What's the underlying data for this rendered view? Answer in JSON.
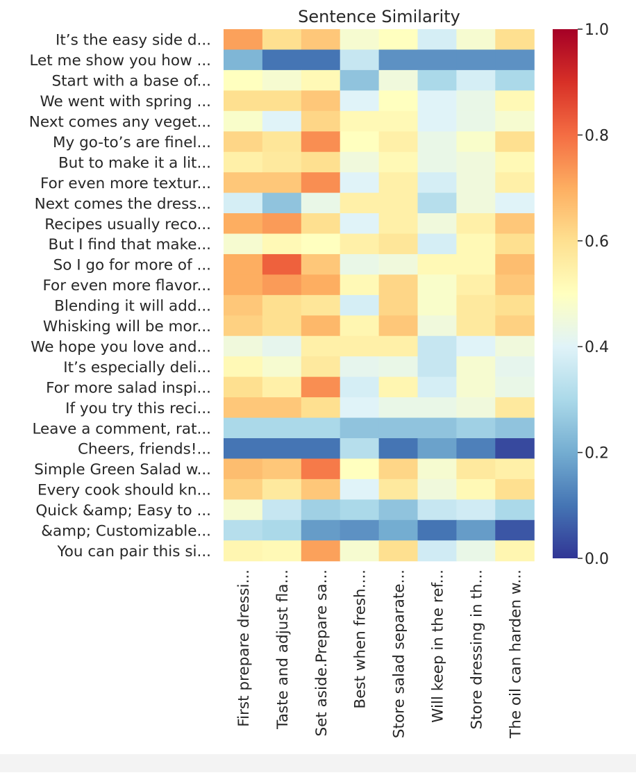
{
  "chart_data": {
    "type": "heatmap",
    "title": "Sentence Similarity",
    "xlabel": "",
    "ylabel": "",
    "rows": [
      "It’s the easy side d...",
      "Let me show you how ...",
      "Start with a base of...",
      "We went with spring ...",
      "Next comes any veget...",
      "My go-to’s are finel...",
      "But to make it a lit...",
      "For even more textur...",
      "Next comes the dress...",
      "Recipes usually reco...",
      "But I find that make...",
      "So I go for more of ...",
      "For even more flavor...",
      "Blending it will add...",
      "Whisking will be mor...",
      "We hope you love and...",
      "It’s especially deli...",
      "For more salad inspi...",
      "If you try this reci...",
      "Leave a comment, rat...",
      "Cheers, friends!...",
      "Simple Green Salad w...",
      "Every cook should kn...",
      "Quick &amp; Easy to ...",
      "&amp; Customizable...",
      "You can pair this si..."
    ],
    "columns": [
      "First prepare dressi...",
      "Taste and adjust fla...",
      "Set aside.Prepare sa...",
      "Best when fresh....",
      "Store salad separate...",
      "Will keep in the ref...",
      "Store dressing in th...",
      "The oil can harden w..."
    ],
    "values": [
      [
        0.72,
        0.6,
        0.65,
        0.47,
        0.5,
        0.38,
        0.47,
        0.6
      ],
      [
        0.22,
        0.1,
        0.1,
        0.35,
        0.15,
        0.15,
        0.15,
        0.15
      ],
      [
        0.5,
        0.47,
        0.52,
        0.25,
        0.45,
        0.3,
        0.38,
        0.3
      ],
      [
        0.6,
        0.6,
        0.65,
        0.4,
        0.5,
        0.4,
        0.43,
        0.52
      ],
      [
        0.48,
        0.4,
        0.62,
        0.52,
        0.52,
        0.4,
        0.43,
        0.47
      ],
      [
        0.62,
        0.58,
        0.75,
        0.5,
        0.55,
        0.43,
        0.48,
        0.6
      ],
      [
        0.55,
        0.57,
        0.6,
        0.45,
        0.52,
        0.43,
        0.45,
        0.52
      ],
      [
        0.65,
        0.65,
        0.75,
        0.4,
        0.55,
        0.38,
        0.45,
        0.55
      ],
      [
        0.38,
        0.25,
        0.43,
        0.55,
        0.55,
        0.32,
        0.45,
        0.4
      ],
      [
        0.7,
        0.73,
        0.6,
        0.4,
        0.55,
        0.45,
        0.55,
        0.65
      ],
      [
        0.47,
        0.52,
        0.5,
        0.55,
        0.58,
        0.38,
        0.52,
        0.6
      ],
      [
        0.7,
        0.82,
        0.65,
        0.43,
        0.45,
        0.52,
        0.52,
        0.67
      ],
      [
        0.7,
        0.73,
        0.7,
        0.52,
        0.62,
        0.48,
        0.55,
        0.65
      ],
      [
        0.65,
        0.6,
        0.58,
        0.38,
        0.62,
        0.48,
        0.57,
        0.6
      ],
      [
        0.63,
        0.6,
        0.68,
        0.53,
        0.65,
        0.45,
        0.57,
        0.63
      ],
      [
        0.45,
        0.42,
        0.55,
        0.55,
        0.55,
        0.35,
        0.4,
        0.45
      ],
      [
        0.52,
        0.47,
        0.57,
        0.42,
        0.43,
        0.35,
        0.47,
        0.42
      ],
      [
        0.6,
        0.55,
        0.75,
        0.38,
        0.53,
        0.38,
        0.47,
        0.43
      ],
      [
        0.65,
        0.65,
        0.6,
        0.4,
        0.43,
        0.43,
        0.45,
        0.57
      ],
      [
        0.3,
        0.3,
        0.3,
        0.25,
        0.25,
        0.25,
        0.28,
        0.25
      ],
      [
        0.1,
        0.1,
        0.1,
        0.32,
        0.1,
        0.18,
        0.12,
        0.03
      ],
      [
        0.67,
        0.65,
        0.78,
        0.5,
        0.62,
        0.47,
        0.57,
        0.55
      ],
      [
        0.63,
        0.57,
        0.65,
        0.4,
        0.57,
        0.45,
        0.52,
        0.6
      ],
      [
        0.47,
        0.35,
        0.28,
        0.3,
        0.25,
        0.35,
        0.37,
        0.3
      ],
      [
        0.32,
        0.3,
        0.17,
        0.15,
        0.2,
        0.1,
        0.17,
        0.05
      ],
      [
        0.53,
        0.52,
        0.72,
        0.47,
        0.6,
        0.37,
        0.43,
        0.53
      ]
    ],
    "colorbar": {
      "range": [
        0.0,
        1.0
      ],
      "ticks": [
        "0.0",
        "0.2",
        "0.4",
        "0.6",
        "0.8",
        "1.0"
      ],
      "colormap": "RdYlBu_r",
      "stops": [
        "#313695",
        "#4575b4",
        "#74add1",
        "#abd9e9",
        "#e0f3f8",
        "#ffffbf",
        "#fee090",
        "#fdae61",
        "#f46d43",
        "#d73027",
        "#a50026"
      ]
    },
    "grid": false,
    "legend": "colorbar-right"
  }
}
